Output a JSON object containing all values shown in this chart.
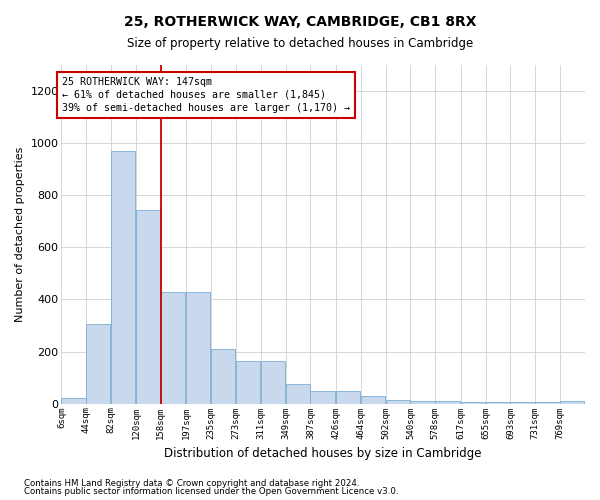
{
  "title": "25, ROTHERWICK WAY, CAMBRIDGE, CB1 8RX",
  "subtitle": "Size of property relative to detached houses in Cambridge",
  "xlabel": "Distribution of detached houses by size in Cambridge",
  "ylabel": "Number of detached properties",
  "property_label": "25 ROTHERWICK WAY: 147sqm",
  "annotation_line1": "← 61% of detached houses are smaller (1,845)",
  "annotation_line2": "39% of semi-detached houses are larger (1,170) →",
  "footnote1": "Contains HM Land Registry data © Crown copyright and database right 2024.",
  "footnote2": "Contains public sector information licensed under the Open Government Licence v3.0.",
  "bar_color": "#c8d9ee",
  "bar_edge_color": "#7aaed4",
  "vline_color": "#cc0000",
  "annotation_box_color": "#cc0000",
  "grid_color": "#d0d0d0",
  "background_color": "#ffffff",
  "bins": [
    6,
    44,
    82,
    120,
    158,
    197,
    235,
    273,
    311,
    349,
    387,
    426,
    464,
    502,
    540,
    578,
    617,
    655,
    693,
    731,
    769
  ],
  "bin_labels": [
    "6sqm",
    "44sqm",
    "82sqm",
    "120sqm",
    "158sqm",
    "197sqm",
    "235sqm",
    "273sqm",
    "311sqm",
    "349sqm",
    "387sqm",
    "426sqm",
    "464sqm",
    "502sqm",
    "540sqm",
    "578sqm",
    "617sqm",
    "655sqm",
    "693sqm",
    "731sqm",
    "769sqm"
  ],
  "values": [
    20,
    305,
    970,
    745,
    430,
    430,
    210,
    165,
    165,
    75,
    50,
    50,
    30,
    15,
    10,
    10,
    5,
    5,
    5,
    5,
    10
  ],
  "ylim": [
    0,
    1300
  ],
  "yticks": [
    0,
    200,
    400,
    600,
    800,
    1000,
    1200
  ],
  "vline_x": 158
}
